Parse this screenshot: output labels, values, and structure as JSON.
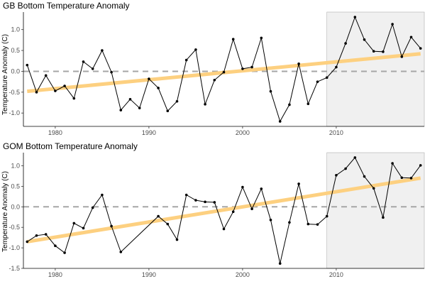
{
  "chart_data": [
    {
      "type": "line",
      "title": "GB Bottom Temperature Anomaly",
      "xlabel": "",
      "ylabel": "Temperature Anomaly (C)",
      "xlim": [
        1976.6,
        2019.4
      ],
      "ylim": [
        -1.32,
        1.42
      ],
      "x_ticks": [
        1980,
        1990,
        2000,
        2010
      ],
      "y_ticks": [
        -1.0,
        -0.5,
        0.0,
        0.5,
        1.0
      ],
      "y_tick_labels": [
        "-1.0",
        "-0.5",
        "0.0",
        "0.5",
        "1.0"
      ],
      "x_tick_labels": [
        "1980",
        "1990",
        "2000",
        "2010"
      ],
      "grid": false,
      "shaded_region": [
        2009,
        2019.4
      ],
      "reference_line": 0,
      "trend": {
        "x": [
          1977,
          2019
        ],
        "y": [
          -0.48,
          0.42
        ]
      },
      "series": [
        {
          "x": [
            1977,
            1978,
            1979,
            1980,
            1981,
            1982,
            1983,
            1984,
            1985,
            1986,
            1987,
            1988,
            1989,
            1990,
            1991,
            1992,
            1993,
            1994,
            1995,
            1996,
            1997,
            1998,
            1999,
            2000,
            2001,
            2002,
            2003,
            2004,
            2005,
            2006,
            2007,
            2008,
            2009,
            2010,
            2011,
            2012,
            2013,
            2014,
            2015,
            2016,
            2017,
            2018,
            2019
          ],
          "y": [
            0.15,
            -0.5,
            -0.1,
            -0.47,
            -0.35,
            -0.65,
            0.23,
            0.06,
            0.5,
            -0.02,
            -0.93,
            -0.67,
            -0.88,
            -0.18,
            -0.4,
            -0.95,
            -0.72,
            0.27,
            0.52,
            -0.79,
            -0.21,
            -0.02,
            0.77,
            0.06,
            0.1,
            0.8,
            -0.48,
            -1.2,
            -0.8,
            0.18,
            -0.78,
            -0.25,
            -0.15,
            0.1,
            0.67,
            1.3,
            0.76,
            0.48,
            0.47,
            1.13,
            0.35,
            0.82,
            0.55
          ]
        }
      ]
    },
    {
      "type": "line",
      "title": "GOM Bottom Temperature Anomaly",
      "xlabel": "",
      "ylabel": "Temperature Anomaly (C)",
      "xlim": [
        1976.6,
        2019.4
      ],
      "ylim": [
        -1.5,
        1.32
      ],
      "x_ticks": [
        1980,
        1990,
        2000,
        2010
      ],
      "y_ticks": [
        -1.5,
        -1.0,
        -0.5,
        0.0,
        0.5,
        1.0
      ],
      "y_tick_labels": [
        "-1.5",
        "-1.0",
        "-0.5",
        "0.0",
        "0.5",
        "1.0"
      ],
      "x_tick_labels": [
        "1980",
        "1990",
        "2000",
        "2010"
      ],
      "grid": false,
      "shaded_region": [
        2009,
        2019.4
      ],
      "reference_line": 0,
      "trend": {
        "x": [
          1977,
          2019
        ],
        "y": [
          -0.85,
          0.7
        ]
      },
      "series": [
        {
          "x": [
            1977,
            1978,
            1979,
            1980,
            1981,
            1982,
            1983,
            1984,
            1985,
            1986,
            1987,
            1991,
            1992,
            1993,
            1994,
            1995,
            1996,
            1997,
            1998,
            1999,
            2000,
            2001,
            2002,
            2003,
            2004,
            2005,
            2006,
            2007,
            2008,
            2009,
            2010,
            2011,
            2012,
            2013,
            2014,
            2015,
            2016,
            2017,
            2018,
            2019
          ],
          "y": [
            -0.85,
            -0.7,
            -0.67,
            -0.95,
            -1.12,
            -0.4,
            -0.52,
            -0.02,
            0.29,
            -0.47,
            -1.1,
            -0.23,
            -0.42,
            -0.8,
            0.29,
            0.16,
            0.12,
            0.11,
            -0.54,
            -0.12,
            0.48,
            -0.05,
            0.44,
            -0.32,
            -1.38,
            -0.38,
            0.56,
            -0.42,
            -0.43,
            -0.23,
            0.77,
            0.93,
            1.2,
            0.74,
            0.45,
            -0.26,
            1.06,
            0.71,
            0.7,
            1.01
          ]
        }
      ]
    }
  ]
}
